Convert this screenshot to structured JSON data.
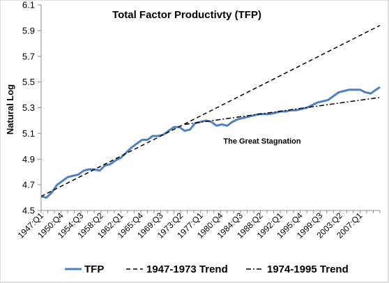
{
  "chart_data": {
    "type": "line",
    "title": "Total Factor Productivty (TFP)",
    "xlabel": "",
    "ylabel": "Natural Log",
    "ylim": [
      4.5,
      6.1
    ],
    "yticks": [
      4.5,
      4.7,
      4.9,
      5.1,
      5.3,
      5.5,
      5.7,
      5.9,
      6.1
    ],
    "ytick_labels": [
      "4.5",
      "4.7",
      "4.9",
      "5.1",
      "5.3",
      "5.5",
      "5.7",
      "5.9",
      "6.1"
    ],
    "xlim": [
      1947.0,
      2010.75
    ],
    "x_tick_labels": [
      "1947:Q1",
      "1950:Q4",
      "1954:Q3",
      "1958:Q2",
      "1962:Q1",
      "1965:Q4",
      "1969:Q3",
      "1973:Q2",
      "1977:Q1",
      "1980:Q4",
      "1984:Q3",
      "1988:Q2",
      "1992:Q1",
      "1995:Q4",
      "1999:Q3",
      "2003:Q2",
      "2007:Q1"
    ],
    "grid": false,
    "legend_position": "bottom",
    "annotations": [
      {
        "text": "The Great Stagnation",
        "x": 1985.5,
        "y": 5.05
      }
    ],
    "series": [
      {
        "name": "TFP",
        "color": "#4f81bd",
        "style": "solid",
        "x": [
          1947.0,
          1948.0,
          1949.0,
          1950.0,
          1951.0,
          1952.0,
          1953.0,
          1954.0,
          1955.0,
          1956.0,
          1957.0,
          1958.0,
          1959.0,
          1960.0,
          1961.0,
          1962.0,
          1963.0,
          1964.0,
          1965.0,
          1966.0,
          1967.0,
          1968.0,
          1969.0,
          1970.0,
          1971.0,
          1972.0,
          1973.0,
          1974.0,
          1975.0,
          1976.0,
          1977.0,
          1978.0,
          1979.0,
          1980.0,
          1981.0,
          1982.0,
          1983.0,
          1984.0,
          1985.0,
          1986.0,
          1987.0,
          1988.0,
          1989.0,
          1990.0,
          1991.0,
          1992.0,
          1993.0,
          1994.0,
          1995.0,
          1996.0,
          1997.0,
          1998.0,
          1999.0,
          2000.0,
          2001.0,
          2002.0,
          2003.0,
          2004.0,
          2005.0,
          2006.0,
          2007.0,
          2008.0,
          2009.0,
          2010.0,
          2010.75
        ],
        "values": [
          4.61,
          4.6,
          4.64,
          4.7,
          4.73,
          4.76,
          4.77,
          4.78,
          4.81,
          4.82,
          4.82,
          4.81,
          4.85,
          4.86,
          4.89,
          4.91,
          4.95,
          4.99,
          5.02,
          5.05,
          5.05,
          5.08,
          5.08,
          5.09,
          5.12,
          5.15,
          5.15,
          5.12,
          5.13,
          5.18,
          5.19,
          5.2,
          5.19,
          5.16,
          5.17,
          5.16,
          5.19,
          5.21,
          5.22,
          5.23,
          5.24,
          5.25,
          5.25,
          5.25,
          5.26,
          5.27,
          5.27,
          5.28,
          5.28,
          5.29,
          5.3,
          5.32,
          5.34,
          5.35,
          5.36,
          5.39,
          5.42,
          5.43,
          5.44,
          5.44,
          5.44,
          5.42,
          5.41,
          5.44,
          5.46
        ]
      },
      {
        "name": "1947-1973 Trend",
        "color": "#000000",
        "style": "dashed",
        "x": [
          1947.0,
          2010.75
        ],
        "values": [
          4.61,
          5.94
        ]
      },
      {
        "name": "1974-1995 Trend",
        "color": "#000000",
        "style": "dashdot",
        "x": [
          1974.0,
          2010.75
        ],
        "values": [
          5.17,
          5.38
        ]
      }
    ]
  }
}
